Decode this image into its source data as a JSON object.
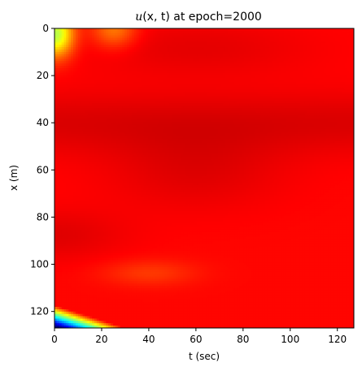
{
  "chart_data": {
    "type": "heatmap",
    "title": {
      "prefix": "u",
      "args": "(x, t)",
      "suffix": " at epoch=2000"
    },
    "xlabel": "t (sec)",
    "ylabel": "x (m)",
    "xlim": [
      0,
      127
    ],
    "ylim": [
      127,
      0
    ],
    "xticks": [
      0,
      20,
      40,
      60,
      80,
      100,
      120
    ],
    "yticks": [
      0,
      20,
      40,
      60,
      80,
      100,
      120
    ],
    "colormap": "jet",
    "value_range": [
      0,
      1
    ],
    "grid": false,
    "legend": "none",
    "field_description": [
      {
        "region": "near x=0, t=0-10",
        "value": "low-mid (yellow/green)"
      },
      {
        "region": "around x=40 and x=88, t=0-20",
        "value": "high (dark red)"
      },
      {
        "region": "bottom-left corner x=115-127, t=0-25",
        "value": "low (blue/cyan)"
      },
      {
        "region": "elsewhere",
        "value": "high (red)"
      }
    ]
  }
}
